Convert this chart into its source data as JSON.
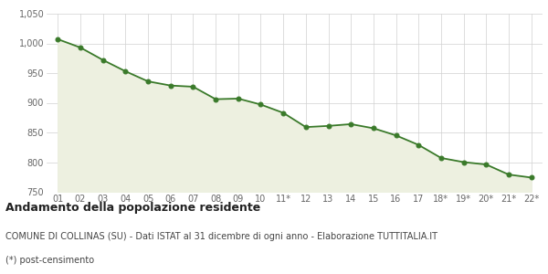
{
  "x_labels": [
    "01",
    "02",
    "03",
    "04",
    "05",
    "06",
    "07",
    "08",
    "09",
    "10",
    "11*",
    "12",
    "13",
    "14",
    "15",
    "16",
    "17",
    "18*",
    "19*",
    "20*",
    "21*",
    "22*"
  ],
  "y_values": [
    1007,
    993,
    972,
    953,
    936,
    929,
    927,
    906,
    907,
    897,
    883,
    859,
    861,
    864,
    857,
    845,
    829,
    807,
    800,
    796,
    779,
    774
  ],
  "line_color": "#3a7a2a",
  "fill_color": "#edf0e0",
  "marker_color": "#3a7a2a",
  "background_color": "#ffffff",
  "grid_color": "#d0d0d0",
  "ylim": [
    750,
    1050
  ],
  "yticks": [
    750,
    800,
    850,
    900,
    950,
    1000,
    1050
  ],
  "ytick_labels": [
    "750",
    "800",
    "850",
    "900",
    "950",
    "1,000",
    "1,050"
  ],
  "title": "Andamento della popolazione residente",
  "subtitle": "COMUNE DI COLLINAS (SU) - Dati ISTAT al 31 dicembre di ogni anno - Elaborazione TUTTITALIA.IT",
  "footnote": "(*) post-censimento",
  "title_fontsize": 9,
  "subtitle_fontsize": 7,
  "footnote_fontsize": 7,
  "tick_fontsize": 7,
  "line_width": 1.3,
  "marker_size": 3.5
}
